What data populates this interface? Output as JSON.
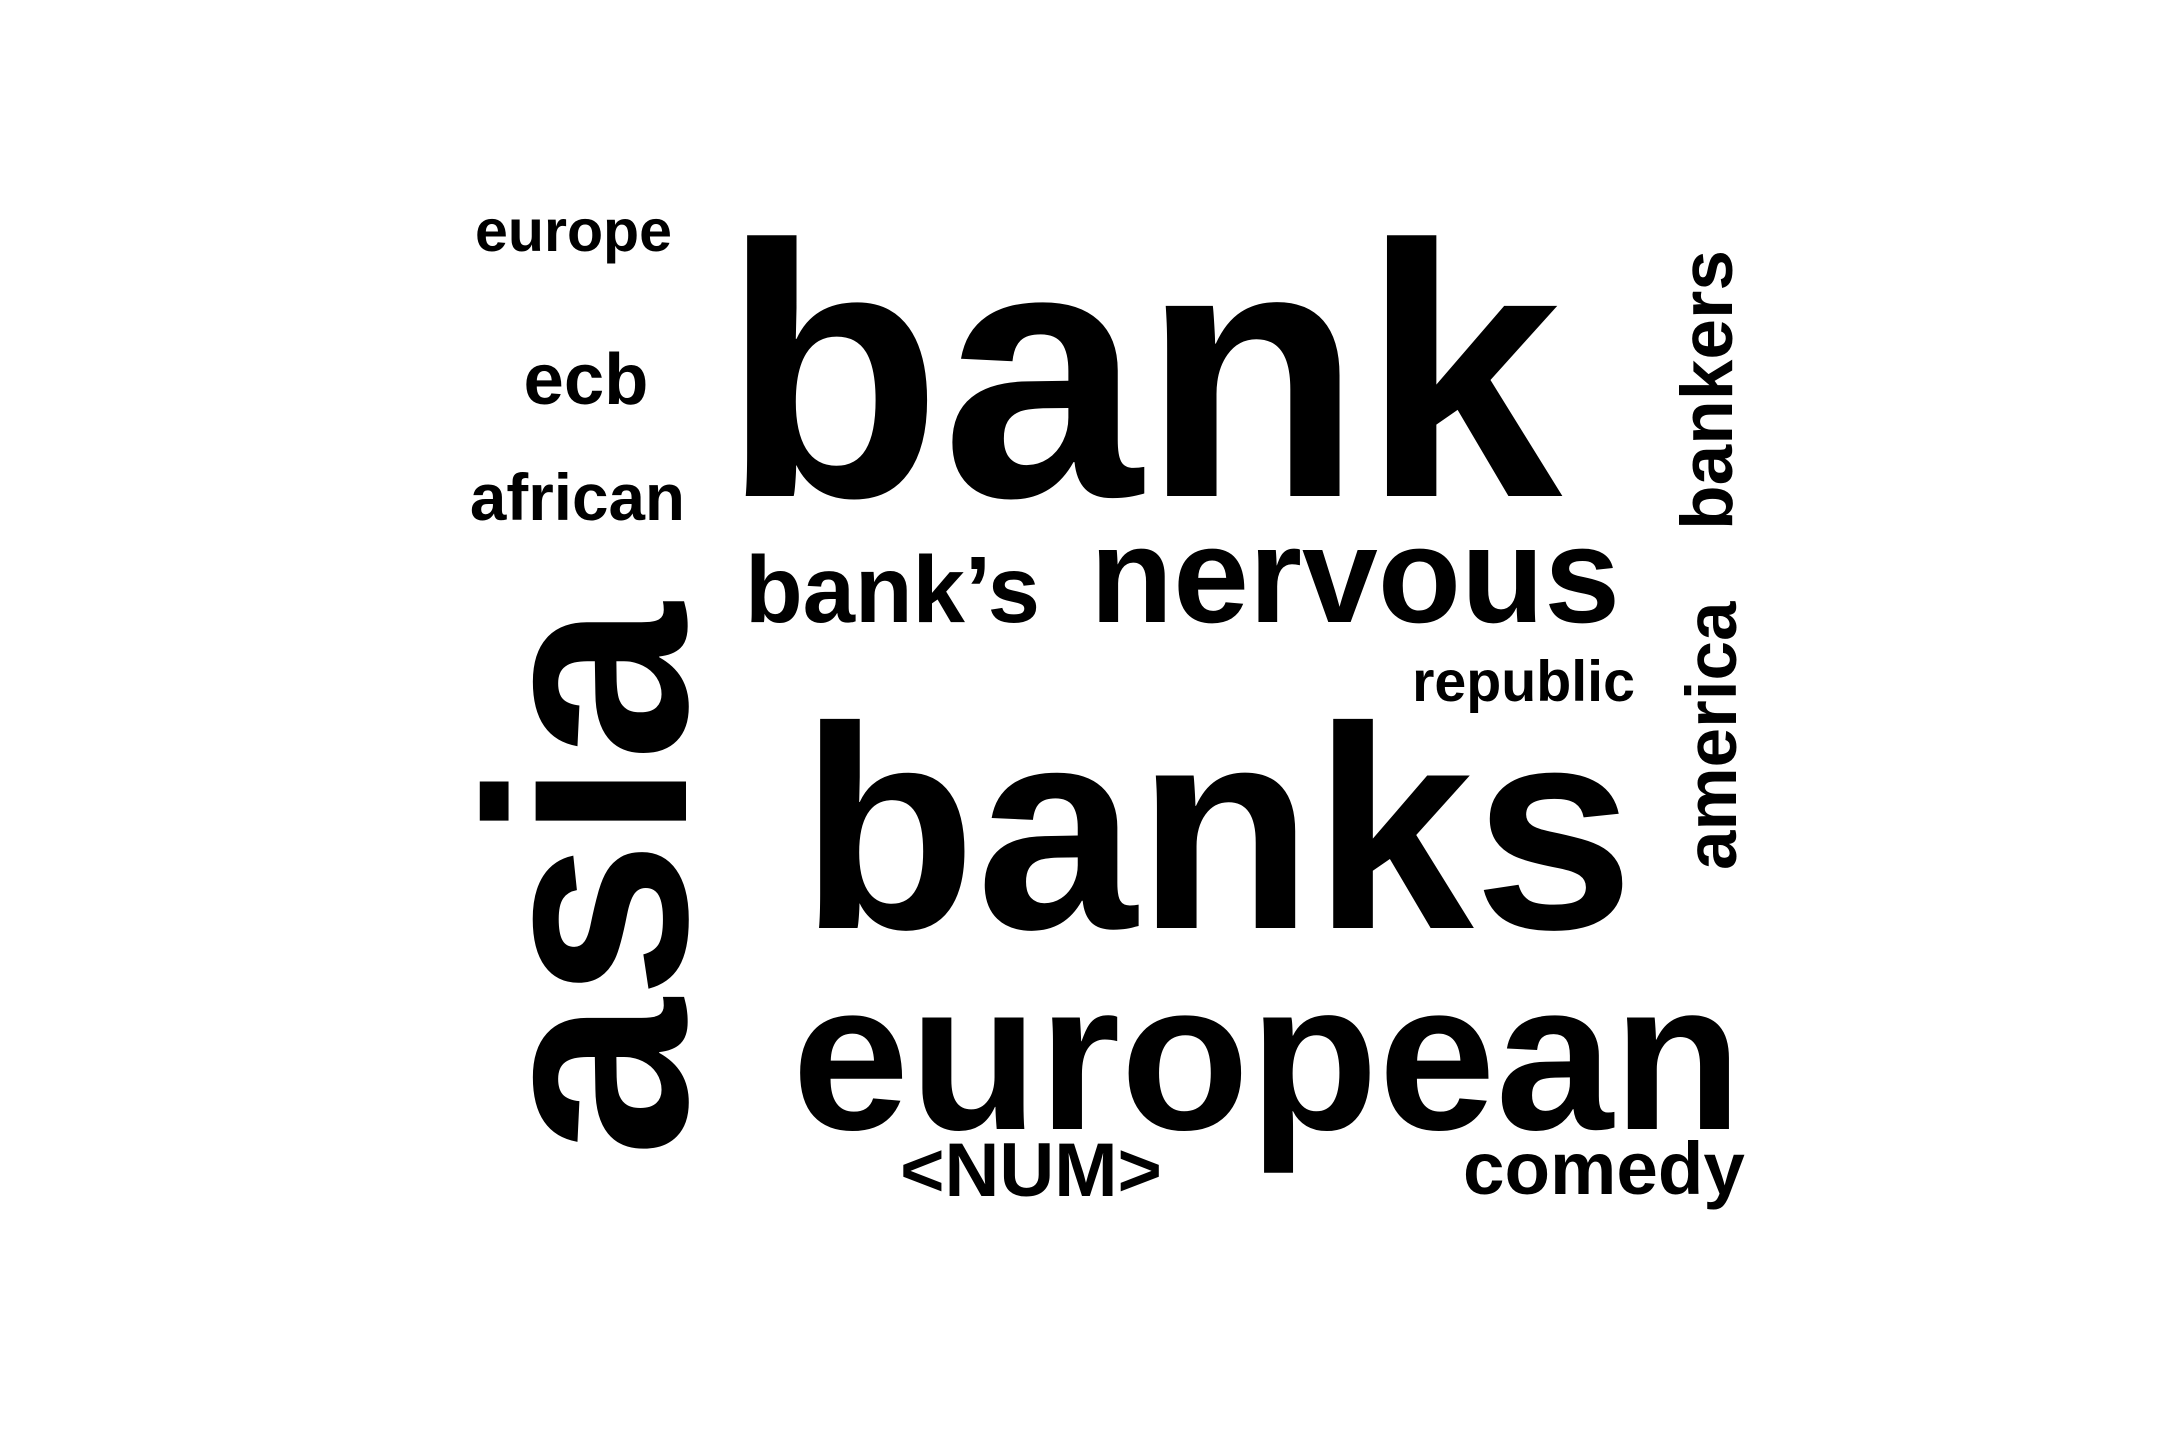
{
  "word_cloud": {
    "text_color": "#000000",
    "background_color": "#ffffff",
    "words": [
      {
        "id": "bank",
        "text": "bank",
        "orientation": "horizontal"
      },
      {
        "id": "banks",
        "text": "banks",
        "orientation": "horizontal"
      },
      {
        "id": "european",
        "text": "european",
        "orientation": "horizontal"
      },
      {
        "id": "asia",
        "text": "asia",
        "orientation": "vertical"
      },
      {
        "id": "nervous",
        "text": "nervous",
        "orientation": "horizontal"
      },
      {
        "id": "banks-possessive",
        "text": "bank’s",
        "orientation": "horizontal"
      },
      {
        "id": "bankers",
        "text": "bankers",
        "orientation": "vertical"
      },
      {
        "id": "america",
        "text": "america",
        "orientation": "vertical"
      },
      {
        "id": "comedy",
        "text": "comedy",
        "orientation": "horizontal"
      },
      {
        "id": "num",
        "text": "<NUM>",
        "orientation": "horizontal"
      },
      {
        "id": "republic",
        "text": "republic",
        "orientation": "horizontal"
      },
      {
        "id": "african",
        "text": "african",
        "orientation": "horizontal"
      },
      {
        "id": "ecb",
        "text": "ecb",
        "orientation": "horizontal"
      },
      {
        "id": "europe",
        "text": "europe",
        "orientation": "horizontal"
      }
    ]
  }
}
